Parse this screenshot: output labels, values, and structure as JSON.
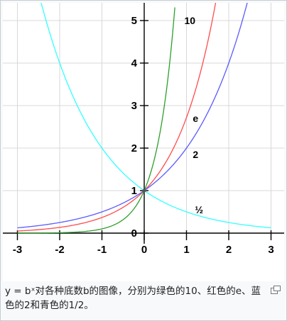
{
  "chart_data": {
    "type": "line",
    "title": "",
    "xlabel": "",
    "ylabel": "",
    "xlim": [
      -3,
      3
    ],
    "ylim": [
      0,
      5
    ],
    "x_ticks": [
      "-3",
      "-2",
      "-1",
      "0",
      "1",
      "2",
      "3"
    ],
    "y_ticks": [
      "0",
      "1",
      "2",
      "3",
      "4",
      "5"
    ],
    "grid": true,
    "series": [
      {
        "name": "10",
        "base": 10,
        "color": "#2ca02c",
        "x": [
          -3,
          -2,
          -1,
          -0.5,
          0,
          0.25,
          0.5,
          0.6,
          0.699
        ],
        "y": [
          0.001,
          0.01,
          0.1,
          0.316,
          1,
          1.778,
          3.162,
          3.981,
          5.0
        ]
      },
      {
        "name": "e",
        "base": 2.718281828,
        "color": "#ff4c4c",
        "x": [
          -3,
          -2,
          -1,
          0,
          0.5,
          1,
          1.5,
          1.609
        ],
        "y": [
          0.05,
          0.135,
          0.368,
          1,
          1.649,
          2.718,
          4.482,
          5.0
        ]
      },
      {
        "name": "2",
        "base": 2,
        "color": "#5a5aff",
        "x": [
          -3,
          -2,
          -1,
          0,
          1,
          2,
          2.322
        ],
        "y": [
          0.125,
          0.25,
          0.5,
          1,
          2,
          4,
          5.0
        ]
      },
      {
        "name": "½",
        "base": 0.5,
        "color": "#33ffff",
        "x": [
          -2.322,
          -2,
          -1,
          0,
          1,
          2,
          3
        ],
        "y": [
          5.0,
          4,
          2,
          1,
          0.5,
          0.25,
          0.125
        ]
      }
    ],
    "curve_labels": [
      {
        "text": "10",
        "x": 0.95,
        "y": 5.0
      },
      {
        "text": "e",
        "x": 1.15,
        "y": 2.7
      },
      {
        "text": "2",
        "x": 1.15,
        "y": 1.85
      },
      {
        "text": "½",
        "x": 1.2,
        "y": 0.55
      }
    ]
  },
  "caption": {
    "text": "y = bˣ对各种底数b的图像，分别为绿色的10、红色的e、蓝色的2和青色的1/2。"
  },
  "enlarge_icon": "enlarge-icon"
}
